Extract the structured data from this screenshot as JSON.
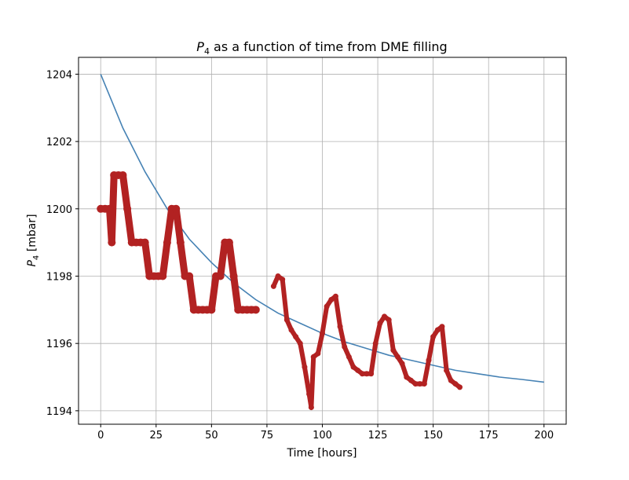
{
  "chart_data": {
    "type": "line",
    "title_prefix": "P",
    "title_subscript": "4",
    "title_rest": " as a function of time from DME filling",
    "xlabel": "Time [hours]",
    "ylabel_prefix": "P",
    "ylabel_subscript": "4",
    "ylabel_rest": " [mbar]",
    "xlim": [
      -10,
      210
    ],
    "ylim": [
      1193.6,
      1204.5
    ],
    "xticks": [
      0,
      25,
      50,
      75,
      100,
      125,
      150,
      175,
      200
    ],
    "yticks": [
      1194,
      1196,
      1198,
      1200,
      1202,
      1204
    ],
    "grid": true,
    "colors": {
      "fit": "#4682b4",
      "measured": "#b22222"
    },
    "series": [
      {
        "role": "exponential-fit",
        "x": [
          0,
          10,
          20,
          30,
          40,
          50,
          60,
          70,
          80,
          90,
          100,
          110,
          120,
          130,
          140,
          150,
          160,
          170,
          180,
          190,
          200
        ],
        "y": [
          1204.0,
          1202.4,
          1201.1,
          1200.0,
          1199.1,
          1198.4,
          1197.8,
          1197.3,
          1196.9,
          1196.6,
          1196.3,
          1196.05,
          1195.85,
          1195.65,
          1195.5,
          1195.35,
          1195.2,
          1195.1,
          1195.0,
          1194.93,
          1194.85
        ]
      },
      {
        "role": "measured-early",
        "x": [
          0,
          2,
          4,
          5,
          6,
          8,
          10,
          12,
          14,
          16,
          18,
          20,
          22,
          24,
          26,
          28,
          30,
          32,
          34,
          36,
          38,
          40,
          42,
          44,
          46,
          48,
          50,
          52,
          54,
          56,
          58,
          60,
          62,
          64,
          66,
          68,
          70
        ],
        "y": [
          1200,
          1200,
          1200,
          1199,
          1201,
          1201,
          1201,
          1200,
          1199,
          1199,
          1199,
          1199,
          1198,
          1198,
          1198,
          1198,
          1199,
          1200,
          1200,
          1199,
          1198,
          1198,
          1197,
          1197,
          1197,
          1197,
          1197,
          1198,
          1198,
          1199,
          1199,
          1198,
          1197,
          1197,
          1197,
          1197,
          1197
        ]
      },
      {
        "role": "measured-late",
        "x": [
          78,
          80,
          82,
          84,
          86,
          88,
          90,
          92,
          94,
          95,
          96,
          98,
          100,
          102,
          104,
          106,
          108,
          110,
          112,
          114,
          116,
          118,
          120,
          122,
          124,
          126,
          128,
          130,
          132,
          134,
          136,
          138,
          140,
          142,
          144,
          146,
          148,
          150,
          152,
          154,
          156,
          158,
          160,
          162
        ],
        "y": [
          1197.7,
          1198.0,
          1197.9,
          1196.7,
          1196.4,
          1196.2,
          1196.0,
          1195.3,
          1194.5,
          1194.1,
          1195.6,
          1195.7,
          1196.3,
          1197.1,
          1197.3,
          1197.4,
          1196.5,
          1195.9,
          1195.6,
          1195.3,
          1195.2,
          1195.1,
          1195.1,
          1195.1,
          1196.0,
          1196.6,
          1196.8,
          1196.7,
          1195.8,
          1195.6,
          1195.4,
          1195.0,
          1194.9,
          1194.8,
          1194.8,
          1194.8,
          1195.5,
          1196.2,
          1196.4,
          1196.5,
          1195.2,
          1194.9,
          1194.8,
          1194.7
        ]
      }
    ]
  }
}
